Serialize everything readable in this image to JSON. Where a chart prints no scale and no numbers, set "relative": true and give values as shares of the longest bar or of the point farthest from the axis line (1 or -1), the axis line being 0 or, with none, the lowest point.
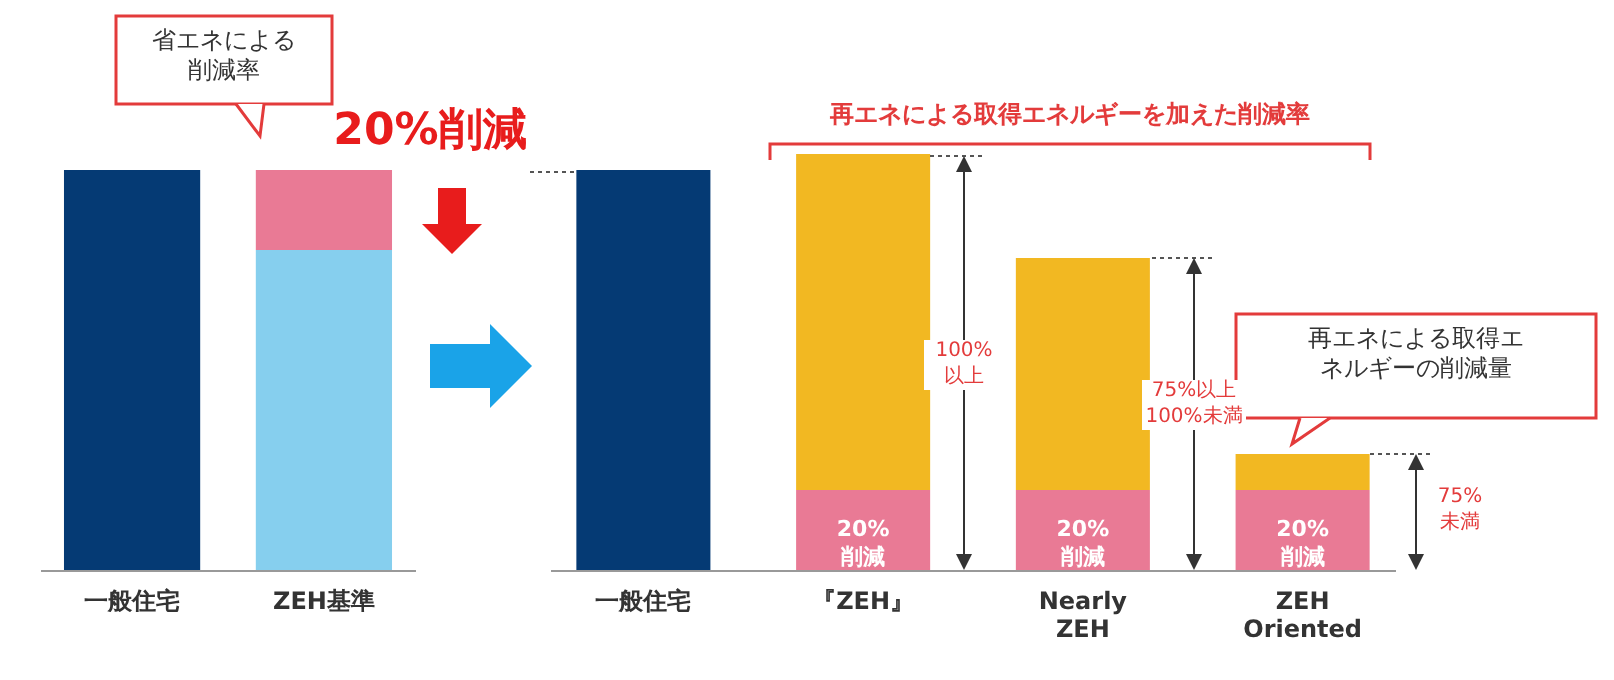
{
  "chart_data": [
    {
      "type": "bar",
      "stacked": true,
      "relative": true,
      "categories": [
        "一般住宅",
        "ZEH基準"
      ],
      "series": [
        {
          "color": "#053a74",
          "values": [
            1,
            null
          ]
        },
        {
          "color": "#86cfee",
          "values": [
            null,
            0.8
          ]
        },
        {
          "color": "#e97a95",
          "values": [
            null,
            0.2
          ]
        }
      ],
      "annotations": [
        "省エネによる削減率",
        "20%削減"
      ]
    },
    {
      "type": "bar",
      "stacked": true,
      "tick_labels": "x",
      "ylim": [
        0,
        104
      ],
      "categories": [
        "一般住宅",
        "『ZEH』",
        "Nearly ZEH",
        "ZEH Oriented"
      ],
      "series": [
        {
          "color": "#053a74",
          "values": [
            100,
            null,
            null,
            null
          ]
        },
        {
          "color": "#e97a95",
          "values": [
            null,
            20,
            20,
            20
          ],
          "value_labels": [
            null,
            "20%\n削減",
            "20%\n削減",
            "20%\n削減"
          ]
        },
        {
          "color": "#f2b822",
          "values": [
            null,
            84,
            58,
            9
          ]
        }
      ],
      "annotations": [
        "再エネによる取得エネルギーを加えた削減率",
        "100%\n以上",
        "75%以上\n100%未満",
        "再エネによる取得エネルギーの削減量",
        "75%\n未満"
      ]
    }
  ]
}
